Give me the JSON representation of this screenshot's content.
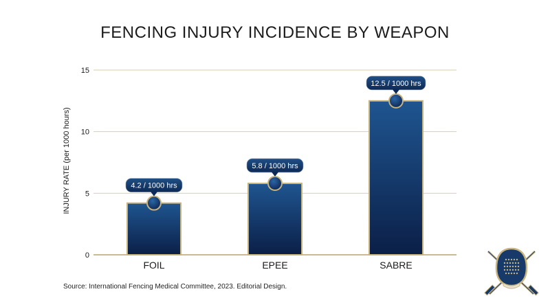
{
  "chart_data": {
    "type": "bar",
    "title": "FENCING INJURY INCIDENCE BY WEAPON",
    "ylabel": "INJURY RATE (per 1000 hours)",
    "xlabel": "",
    "categories": [
      "FOIL",
      "EPEE",
      "SABRE"
    ],
    "values": [
      4.2,
      5.8,
      12.5
    ],
    "data_labels": [
      "4.2 / 1000 hrs",
      "5.8 / 1000 hrs",
      "12.5 / 1000 hrs"
    ],
    "ylim": [
      0,
      15
    ],
    "yticks": [
      0,
      5,
      10,
      15
    ],
    "grid": true
  },
  "source": "Source: International Fencing Medical Committee, 2023. Editorial Design.",
  "colors": {
    "bar_top": "#1f5590",
    "bar_bottom": "#0b1f47",
    "bar_border": "#c9b47e",
    "gridline": "#d8cfa8",
    "label_bg": "#143a6b"
  },
  "logo_icon": "fencing-mask-crossed-swords-icon"
}
